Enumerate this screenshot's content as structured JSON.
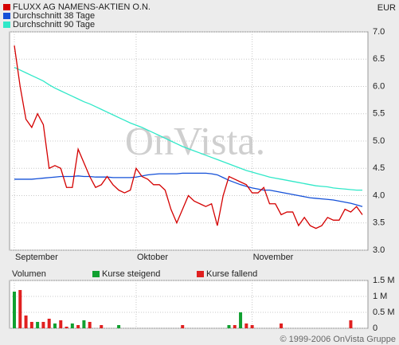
{
  "header": {
    "currency": "EUR"
  },
  "watermark": "OnVista.",
  "footer": "© 1999-2006 OnVista Gruppe",
  "chart_data": [
    {
      "type": "line",
      "categories": [
        "September",
        null,
        null,
        null,
        null,
        null,
        null,
        null,
        null,
        null,
        null,
        null,
        null,
        null,
        null,
        null,
        null,
        null,
        null,
        null,
        null,
        "Oktober",
        null,
        null,
        null,
        null,
        null,
        null,
        null,
        null,
        null,
        null,
        null,
        null,
        null,
        null,
        null,
        null,
        null,
        null,
        null,
        "November",
        null,
        null,
        null,
        null,
        null,
        null,
        null,
        null,
        null,
        null,
        null,
        null,
        null,
        null,
        null,
        null,
        null,
        null,
        null
      ],
      "series": [
        {
          "name": "FLUXX AG NAMENS-AKTIEN O.N.",
          "color": "#d40000",
          "values": [
            6.75,
            6.0,
            5.4,
            5.25,
            5.5,
            5.3,
            4.5,
            4.55,
            4.5,
            4.15,
            4.15,
            4.85,
            4.6,
            4.35,
            4.15,
            4.2,
            4.35,
            4.2,
            4.1,
            4.05,
            4.1,
            4.5,
            4.35,
            4.3,
            4.2,
            4.2,
            4.1,
            3.75,
            3.5,
            3.75,
            4.0,
            3.9,
            3.85,
            3.8,
            3.85,
            3.45,
            4.0,
            4.35,
            4.3,
            4.25,
            4.2,
            4.05,
            4.05,
            4.15,
            3.85,
            3.85,
            3.65,
            3.7,
            3.7,
            3.45,
            3.6,
            3.45,
            3.4,
            3.45,
            3.6,
            3.55,
            3.55,
            3.75,
            3.7,
            3.8,
            3.65
          ]
        },
        {
          "name": "Durchschnitt 38 Tage",
          "color": "#1450d8",
          "values": [
            4.3,
            4.3,
            4.3,
            4.3,
            4.31,
            4.32,
            4.33,
            4.34,
            4.35,
            4.35,
            4.35,
            4.36,
            4.35,
            4.35,
            4.34,
            4.34,
            4.34,
            4.33,
            4.33,
            4.33,
            4.33,
            4.34,
            4.36,
            4.38,
            4.39,
            4.4,
            4.4,
            4.4,
            4.4,
            4.41,
            4.41,
            4.41,
            4.41,
            4.41,
            4.4,
            4.38,
            4.33,
            4.28,
            4.24,
            4.2,
            4.17,
            4.14,
            4.12,
            4.1,
            4.1,
            4.08,
            4.06,
            4.04,
            4.02,
            4.0,
            3.98,
            3.96,
            3.95,
            3.94,
            3.93,
            3.92,
            3.9,
            3.88,
            3.86,
            3.83,
            3.8
          ]
        },
        {
          "name": "Durchschnitt 90 Tage",
          "color": "#30e8c8",
          "values": [
            6.35,
            6.3,
            6.25,
            6.2,
            6.15,
            6.1,
            6.03,
            5.97,
            5.92,
            5.87,
            5.82,
            5.77,
            5.72,
            5.68,
            5.63,
            5.58,
            5.53,
            5.48,
            5.43,
            5.38,
            5.33,
            5.29,
            5.25,
            5.2,
            5.15,
            5.1,
            5.05,
            5.0,
            4.95,
            4.9,
            4.86,
            4.82,
            4.78,
            4.74,
            4.7,
            4.66,
            4.62,
            4.58,
            4.54,
            4.5,
            4.46,
            4.43,
            4.4,
            4.37,
            4.34,
            4.32,
            4.3,
            4.28,
            4.26,
            4.24,
            4.22,
            4.2,
            4.18,
            4.17,
            4.16,
            4.14,
            4.13,
            4.12,
            4.11,
            4.1,
            4.1
          ]
        }
      ],
      "ylim": [
        3,
        7
      ],
      "yticks": [
        {
          "value": 3,
          "label": "3.0"
        },
        3.5,
        {
          "value": 4,
          "label": "4.0"
        },
        4.5,
        {
          "value": 5,
          "label": "5.0"
        },
        5.5,
        {
          "value": 6,
          "label": "6.0"
        },
        6.5,
        {
          "value": 7,
          "label": "7.0"
        }
      ],
      "grid": true
    },
    {
      "type": "bar",
      "title": "Volumen",
      "series": [
        {
          "name": "Kurse steigend",
          "color": "#10a030",
          "values": [
            1.15,
            null,
            null,
            null,
            0.2,
            null,
            null,
            0.15,
            null,
            null,
            0.15,
            null,
            0.25,
            null,
            null,
            null,
            null,
            null,
            0.1,
            null,
            null,
            null,
            null,
            null,
            null,
            null,
            null,
            null,
            null,
            null,
            null,
            null,
            null,
            null,
            null,
            null,
            null,
            0.1,
            null,
            0.5,
            null,
            null,
            null,
            null,
            null,
            null,
            null,
            null,
            null,
            null,
            null,
            null,
            null,
            null,
            null,
            null,
            null,
            null,
            null,
            null,
            null
          ]
        },
        {
          "name": "Kurse fallend",
          "color": "#e02020",
          "values": [
            null,
            1.2,
            0.4,
            0.2,
            null,
            0.2,
            0.3,
            null,
            0.25,
            0.05,
            null,
            0.1,
            null,
            0.2,
            null,
            0.1,
            null,
            null,
            null,
            null,
            null,
            null,
            null,
            null,
            null,
            null,
            null,
            null,
            null,
            0.1,
            null,
            null,
            null,
            null,
            null,
            null,
            null,
            null,
            0.1,
            null,
            0.15,
            0.1,
            null,
            null,
            null,
            null,
            0.15,
            null,
            null,
            null,
            null,
            null,
            null,
            null,
            null,
            null,
            null,
            null,
            0.25,
            null,
            null
          ]
        }
      ],
      "ylim": [
        0,
        1.5
      ],
      "yticks": [
        0,
        {
          "value": 0.5,
          "label": "0.5 M"
        },
        {
          "value": 1,
          "label": "1 M"
        },
        {
          "value": 1.5,
          "label": "1.5 M"
        }
      ],
      "grid": true
    }
  ]
}
